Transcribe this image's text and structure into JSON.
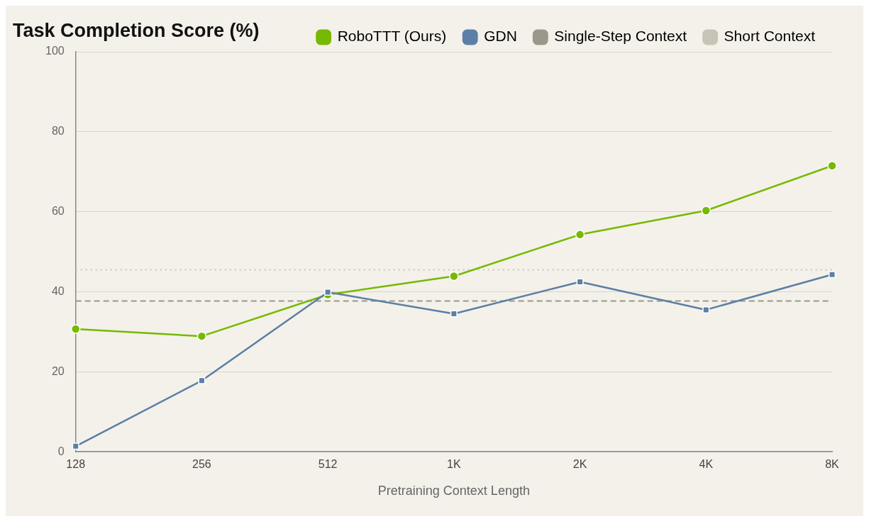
{
  "chart_data": {
    "type": "line",
    "title": "Task Completion Score (%)",
    "xlabel": "Pretraining Context Length",
    "categories": [
      "128",
      "256",
      "512",
      "1K",
      "2K",
      "4K",
      "8K"
    ],
    "series": [
      {
        "name": "RoboTTT (Ours)",
        "color": "#76b900",
        "marker": "circle",
        "values": [
          30.7,
          28.9,
          39.3,
          43.9,
          54.3,
          60.3,
          71.5
        ]
      },
      {
        "name": "GDN",
        "color": "#5b7fa6",
        "marker": "square",
        "values": [
          1.4,
          17.8,
          39.9,
          34.5,
          42.5,
          35.5,
          44.3
        ]
      },
      {
        "name": "Single-Step Context",
        "color": "#9a988a",
        "marker": "none",
        "line_style": "dashed",
        "values": [
          37.7,
          37.7,
          37.7,
          37.7,
          37.7,
          37.7,
          37.7
        ]
      },
      {
        "name": "Short Context",
        "color": "#c5c4b6",
        "marker": "none",
        "line_style": "dotted",
        "values": [
          45.5,
          45.5,
          45.5,
          45.5,
          45.5,
          45.5,
          45.5
        ]
      }
    ],
    "ylim": [
      0,
      100
    ],
    "yticks": [
      0,
      20,
      40,
      60,
      80,
      100
    ],
    "grid": "y",
    "legend": "top right"
  }
}
